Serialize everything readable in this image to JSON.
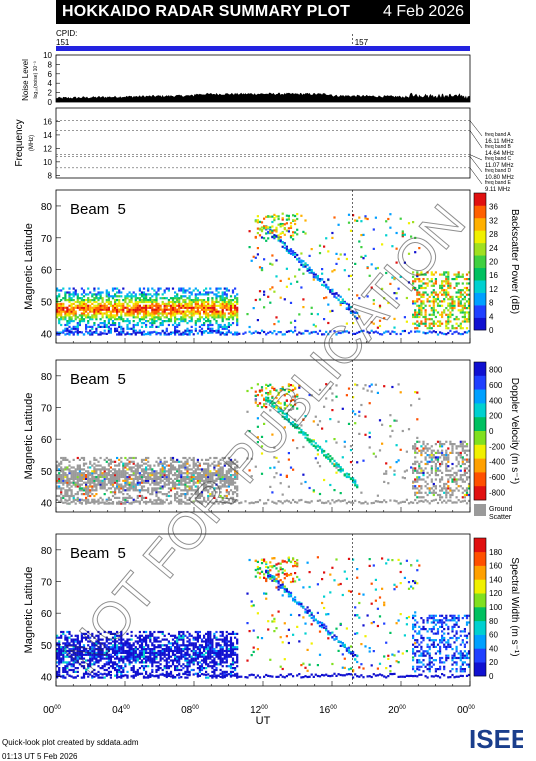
{
  "header": {
    "title": "HOKKAIDO RADAR SUMMARY PLOT",
    "date": "4 Feb 2026"
  },
  "cpid": {
    "label": "CPID:",
    "values": [
      "151",
      "157"
    ],
    "change_hour": 17.2
  },
  "noise_panel": {
    "ylabel": "Noise Level",
    "ysub": "log₁₀(noise) 10⁻³",
    "yticks": [
      0,
      2,
      4,
      6,
      8,
      10
    ]
  },
  "frequency_panel": {
    "ylabel": "Frequency",
    "yunit": "(MHz)",
    "yticks": [
      8,
      10,
      12,
      14,
      16
    ],
    "bands": [
      {
        "label": "freq band A",
        "value": "16.11 MHz",
        "mhz": 16.11
      },
      {
        "label": "freq band B",
        "value": "14.64 MHz",
        "mhz": 14.64
      },
      {
        "label": "freq band C",
        "value": "11.07 MHz",
        "mhz": 11.07
      },
      {
        "label": "freq band D",
        "value": "10.80 MHz",
        "mhz": 10.8
      },
      {
        "label": "freq band E",
        "value": "9.11 MHz",
        "mhz": 9.11
      }
    ]
  },
  "chart_data": [
    {
      "type": "heatmap",
      "panel": "backscatter-power",
      "beam_label": "Beam  5",
      "ylabel": "Magnetic Latitude",
      "yticks": [
        40,
        50,
        60,
        70,
        80
      ],
      "colorbar_label": "Backscatter Power (dB)",
      "colorbar_ticks": [
        "0",
        "4",
        "8",
        "12",
        "16",
        "20",
        "24",
        "28",
        "32",
        "36"
      ],
      "colors": [
        "#1010d0",
        "#2040ff",
        "#00a0ff",
        "#00d0d0",
        "#00c060",
        "#40d040",
        "#a0e020",
        "#f0f000",
        "#ffb000",
        "#ff6000",
        "#e01010"
      ]
    },
    {
      "type": "heatmap",
      "panel": "doppler-velocity",
      "beam_label": "Beam  5",
      "ylabel": "Magnetic Latitude",
      "yticks": [
        40,
        50,
        60,
        70,
        80
      ],
      "colorbar_label": "Doppler Velocity (m s⁻¹)",
      "colorbar_ticks": [
        "800",
        "600",
        "400",
        "200",
        "0",
        "-200",
        "-400",
        "-600",
        "-800"
      ],
      "ground_scatter_label": [
        "Ground",
        "Scatter"
      ],
      "colors": [
        "#1010d0",
        "#2040ff",
        "#00a0ff",
        "#00d0d0",
        "#00c060",
        "#80e020",
        "#f0f000",
        "#ffa000",
        "#ff5000",
        "#e01010"
      ]
    },
    {
      "type": "heatmap",
      "panel": "spectral-width",
      "beam_label": "Beam  5",
      "ylabel": "Magnetic Latitude",
      "yticks": [
        40,
        50,
        60,
        70,
        80
      ],
      "colorbar_label": "Spectral Width (m s⁻¹)",
      "colorbar_ticks": [
        "0",
        "20",
        "40",
        "60",
        "80",
        "100",
        "120",
        "140",
        "160",
        "180"
      ],
      "colors": [
        "#1010d0",
        "#2040ff",
        "#00a0ff",
        "#00d0d0",
        "#00c060",
        "#80e020",
        "#f0f000",
        "#ffa000",
        "#ff5000",
        "#e01010"
      ]
    }
  ],
  "xaxis": {
    "label": "UT",
    "ticks": [
      "00",
      "04",
      "08",
      "12",
      "16",
      "20",
      "00"
    ],
    "tick_sup": "00"
  },
  "watermark": "NOT FOR PUBLICATION",
  "footer": {
    "line1": "Quick-look plot created by sddata.adm",
    "line2": "01:13 UT  5 Feb 2026"
  },
  "logo": {
    "text": "ISEE",
    "colors": [
      "#1a3e8c",
      "#2aa34a"
    ]
  }
}
